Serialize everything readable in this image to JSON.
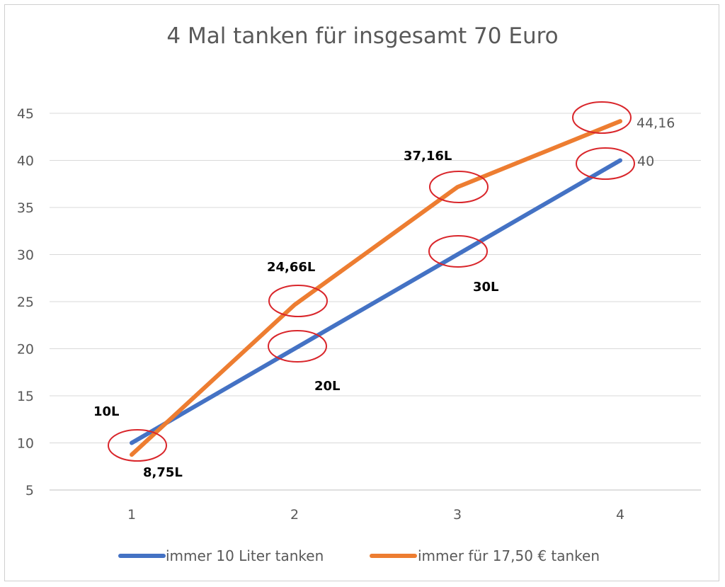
{
  "chart_data": {
    "type": "line",
    "title": "4 Mal tanken für insgesamt 70 Euro",
    "xlabel": "",
    "ylabel": "",
    "categories": [
      "1",
      "2",
      "3",
      "4"
    ],
    "ylim": [
      5,
      45
    ],
    "yticks": [
      "5",
      "10",
      "15",
      "20",
      "25",
      "30",
      "35",
      "40",
      "45"
    ],
    "grid": true,
    "legend_position": "bottom",
    "series": [
      {
        "name": "immer 10 Liter tanken",
        "color": "#4472C4",
        "values": [
          10,
          20,
          30,
          40
        ],
        "labels": [
          "10L",
          "20L",
          "30L",
          "40"
        ]
      },
      {
        "name": "immer für 17,50 € tanken",
        "color": "#ED7D31",
        "values": [
          8.75,
          24.66,
          37.16,
          44.16
        ],
        "labels": [
          "8,75L",
          "24,66L",
          "37,16L",
          "44,16"
        ]
      }
    ],
    "annotations": {
      "type": "circle-highlight",
      "color": "#D9262B"
    }
  }
}
